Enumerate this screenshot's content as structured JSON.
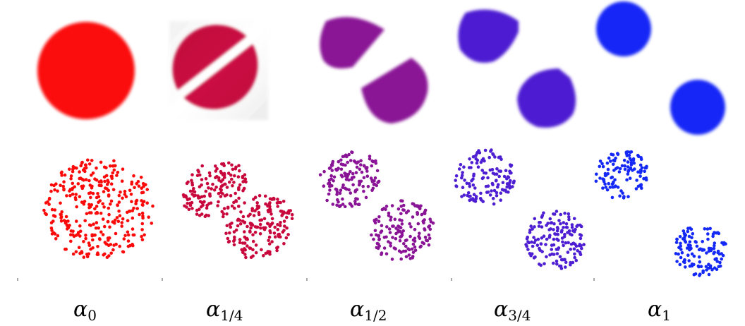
{
  "panels": [
    {
      "symbol": "α",
      "subscript": "0",
      "color": "#fb0a0a"
    },
    {
      "symbol": "α",
      "subscript": "1/4",
      "color": "#c8083c"
    },
    {
      "symbol": "α",
      "subscript": "1/2",
      "color": "#8a1496"
    },
    {
      "symbol": "α",
      "subscript": "3/4",
      "color": "#4e1ed2"
    },
    {
      "symbol": "α",
      "subscript": "1",
      "color": "#1428f6"
    }
  ]
}
